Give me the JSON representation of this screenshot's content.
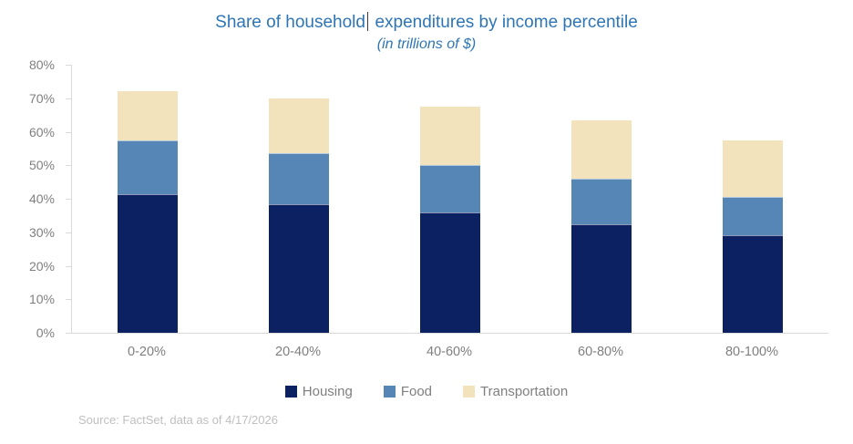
{
  "title": {
    "text_before_caret": "Share of household",
    "text_after_caret": "expenditures by income percentile",
    "subtitle": "(in trillions of $)",
    "color": "#2E75B6"
  },
  "chart_data": {
    "type": "bar",
    "stacked": true,
    "title": "Share of household expenditures by income percentile",
    "subtitle": "(in trillions of $)",
    "categories": [
      "0-20%",
      "20-40%",
      "40-60%",
      "60-80%",
      "80-100%"
    ],
    "series": [
      {
        "name": "Housing",
        "color": "#0B2162",
        "values": [
          41.5,
          38.5,
          36.0,
          32.5,
          29.0
        ]
      },
      {
        "name": "Food",
        "color": "#5586B5",
        "values": [
          16.0,
          15.0,
          14.0,
          13.5,
          11.5
        ]
      },
      {
        "name": "Transportation",
        "color": "#F2E3BD",
        "values": [
          14.5,
          16.5,
          17.5,
          17.5,
          17.0
        ]
      }
    ],
    "stack_totals": [
      72.0,
      70.0,
      67.5,
      63.5,
      57.5
    ],
    "xlabel": "",
    "ylabel": "",
    "ylim": [
      0,
      80
    ],
    "ytick_step": 10,
    "ytick_labels": [
      "0%",
      "10%",
      "20%",
      "30%",
      "40%",
      "50%",
      "60%",
      "70%",
      "80%"
    ],
    "grid": false,
    "legend_position": "bottom",
    "axis_line_color": "#D9D9D9",
    "axis_text_color": "#7F7F7F"
  },
  "source": "Source: FactSet, data as of 4/17/2026"
}
